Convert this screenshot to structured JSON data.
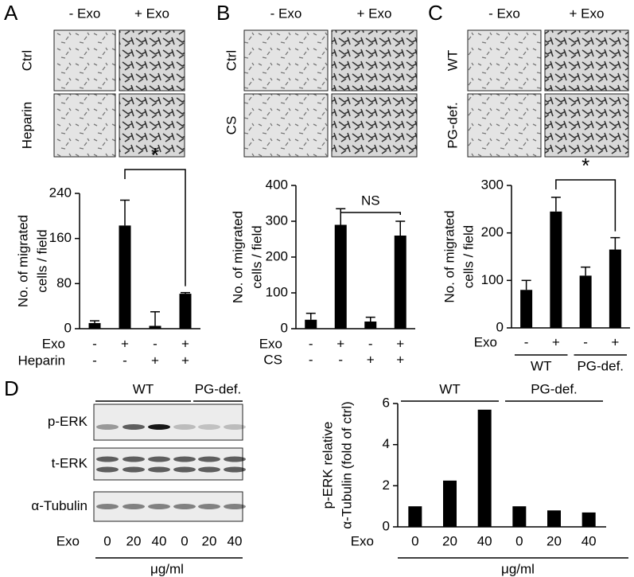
{
  "chart_data": [
    {
      "type": "bar",
      "panel": "A",
      "y_label": [
        "No. of migrated",
        "cells / field"
      ],
      "values": [
        10,
        183,
        5,
        62
      ],
      "errors": [
        4,
        45,
        25,
        2
      ],
      "color": "#000000",
      "ylim": [
        0,
        240
      ],
      "yticks": [
        0,
        80,
        160,
        240
      ],
      "annotation": "*",
      "rows": [
        {
          "label": "Exo",
          "marks": [
            "-",
            "+",
            "-",
            "+"
          ]
        },
        {
          "label": "Heparin",
          "marks": [
            "-",
            "-",
            "+",
            "+"
          ]
        }
      ]
    },
    {
      "type": "bar",
      "panel": "B",
      "y_label": [
        "No. of migrated",
        "cells / field"
      ],
      "values": [
        25,
        290,
        20,
        260
      ],
      "errors": [
        18,
        45,
        12,
        40
      ],
      "color": "#000000",
      "ylim": [
        0,
        400
      ],
      "yticks": [
        0,
        100,
        200,
        300,
        400
      ],
      "annotation": "NS",
      "rows": [
        {
          "label": "Exo",
          "marks": [
            "-",
            "+",
            "-",
            "+"
          ]
        },
        {
          "label": "CS",
          "marks": [
            "-",
            "-",
            "+",
            "+"
          ]
        }
      ]
    },
    {
      "type": "bar",
      "panel": "C",
      "y_label": [
        "No. of migrated",
        "cells / field"
      ],
      "values": [
        80,
        245,
        110,
        165
      ],
      "errors": [
        20,
        30,
        18,
        25
      ],
      "color": "#000000",
      "ylim": [
        0,
        300
      ],
      "yticks": [
        0,
        100,
        200,
        300
      ],
      "annotation": "*",
      "rows": [
        {
          "label": "Exo",
          "marks": [
            "-",
            "+",
            "-",
            "+"
          ]
        }
      ],
      "groups": [
        "WT",
        "PG-def."
      ]
    },
    {
      "type": "bar",
      "y_label": [
        "p-ERK relative",
        "α-Tubulin (fold of ctrl)"
      ],
      "values": [
        1,
        2.25,
        5.7,
        1,
        0.8,
        0.7
      ],
      "color": "#000000",
      "ylim": [
        0,
        6
      ],
      "yticks": [
        0,
        2,
        4,
        6
      ],
      "rows": [
        {
          "label": "Exo",
          "marks": [
            0,
            20,
            40,
            0,
            20,
            40
          ]
        }
      ],
      "groups": [
        "WT",
        "PG-def."
      ],
      "unit": "μg/ml"
    }
  ],
  "micrographs": [
    {
      "letter": "A",
      "columns": [
        "- Exo",
        "+ Exo"
      ],
      "rows": [
        "Ctrl",
        "Heparin"
      ]
    },
    {
      "letter": "B",
      "columns": [
        "- Exo",
        "+ Exo"
      ],
      "rows": [
        "Ctrl",
        "CS"
      ]
    },
    {
      "letter": "C",
      "columns": [
        "- Exo",
        "+ Exo"
      ],
      "rows": [
        "WT",
        "PG-def."
      ]
    }
  ],
  "blot": {
    "letter": "D",
    "bands": [
      "p-ERK",
      "t-ERK",
      "α-Tubulin"
    ],
    "groups": [
      "WT",
      "PG-def."
    ],
    "row_label": "Exo",
    "doses": [
      0,
      20,
      40,
      0,
      20,
      40
    ],
    "unit": "μg/ml"
  }
}
